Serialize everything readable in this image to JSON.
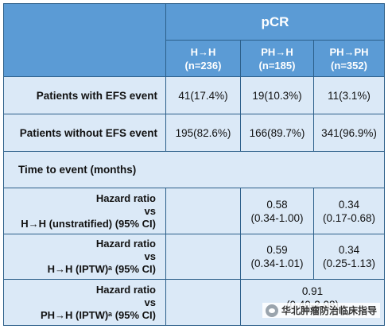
{
  "header": {
    "group_label": "pCR",
    "columns": [
      {
        "name": "H→H",
        "n": "(n=236)"
      },
      {
        "name": "PH→H",
        "n": "(n=185)"
      },
      {
        "name": "PH→PH",
        "n": "(n=352)"
      }
    ]
  },
  "rows": {
    "with_efs": {
      "label": "Patients with EFS event",
      "values": [
        "41(17.4%)",
        "19(10.3%)",
        "11(3.1%)"
      ]
    },
    "without_efs": {
      "label": "Patients without EFS event",
      "values": [
        "195(82.6%)",
        "166(89.7%)",
        "341(96.9%)"
      ]
    },
    "time_to_event": {
      "label": "Time to event (months)"
    },
    "hr1": {
      "line1": "Hazard ratio",
      "line2": "vs",
      "line3": "H→H (unstratified) (95% CI)",
      "col2_value": "0.58",
      "col2_ci": "(0.34-1.00)",
      "col3_value": "0.34",
      "col3_ci": "(0.17-0.68)"
    },
    "hr2": {
      "line1": "Hazard ratio",
      "line2": "vs",
      "line3": "H→H (IPTW)ᵃ (95% CI)",
      "col2_value": "0.59",
      "col2_ci": "(0.34-1.01)",
      "col3_value": "0.34",
      "col3_ci": "(0.25-1.13)"
    },
    "hr3": {
      "line1": "Hazard ratio",
      "line2": "vs",
      "line3": "PH→H (IPTW)ᵃ (95% CI)",
      "merged_value": "0.91",
      "merged_ci": "(0.40-2.08)"
    }
  },
  "watermark": {
    "text": "华北肿瘤防治临床指导",
    "icon": "wechat-icon"
  },
  "colors": {
    "header_blue": "#5b9bd5",
    "body_light_blue": "#dbe9f7",
    "border": "#2c5f8a"
  }
}
